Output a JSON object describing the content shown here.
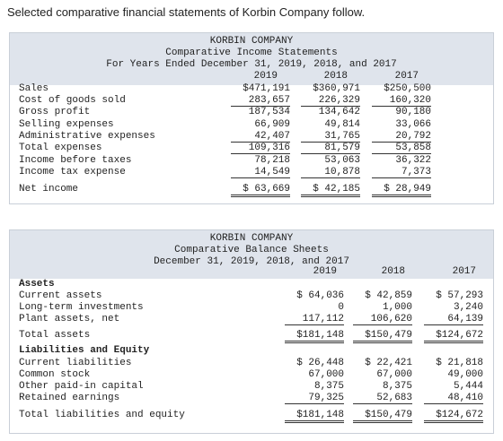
{
  "intro": "Selected comparative financial statements of Korbin Company follow.",
  "income_statement": {
    "title_lines": [
      "KORBIN COMPANY",
      "Comparative Income Statements",
      "For Years Ended December 31, 2019, 2018, and 2017"
    ],
    "years": [
      "2019",
      "2018",
      "2017"
    ],
    "rows": [
      [
        "Sales",
        "$471,191",
        "$360,971",
        "$250,500"
      ],
      [
        "Cost of goods sold",
        "283,657",
        "226,329",
        "160,320"
      ],
      [
        "Gross profit",
        "187,534",
        "134,642",
        "90,180"
      ],
      [
        "Selling expenses",
        "66,909",
        "49,814",
        "33,066"
      ],
      [
        "Administrative expenses",
        "42,407",
        "31,765",
        "20,792"
      ],
      [
        "Total expenses",
        "109,316",
        "81,579",
        "53,858"
      ],
      [
        "Income before taxes",
        "78,218",
        "53,063",
        "36,322"
      ],
      [
        "Income tax expense",
        "14,549",
        "10,878",
        "7,373"
      ],
      [
        "Net income",
        "$ 63,669",
        "$ 42,185",
        "$ 28,949"
      ]
    ]
  },
  "balance_sheet": {
    "title_lines": [
      "KORBIN COMPANY",
      "Comparative Balance Sheets",
      "December 31, 2019, 2018, and 2017"
    ],
    "years": [
      "2019",
      "2018",
      "2017"
    ],
    "rows": [
      [
        "Assets"
      ],
      [
        "Current assets",
        "$ 64,036",
        "$ 42,859",
        "$ 57,293"
      ],
      [
        "Long-term investments",
        "0",
        "1,000",
        "3,240"
      ],
      [
        "Plant assets, net",
        "117,112",
        "106,620",
        "64,139"
      ],
      [
        "Total assets",
        "$181,148",
        "$150,479",
        "$124,672"
      ],
      [
        "Liabilities and Equity"
      ],
      [
        "Current liabilities",
        "$ 26,448",
        "$ 22,421",
        "$ 21,818"
      ],
      [
        "Common stock",
        "67,000",
        "67,000",
        "49,000"
      ],
      [
        "Other paid-in capital",
        "8,375",
        "8,375",
        "5,444"
      ],
      [
        "Retained earnings",
        "79,325",
        "52,683",
        "48,410"
      ],
      [
        "Total liabilities and equity",
        "$181,148",
        "$150,479",
        "$124,672"
      ]
    ]
  }
}
